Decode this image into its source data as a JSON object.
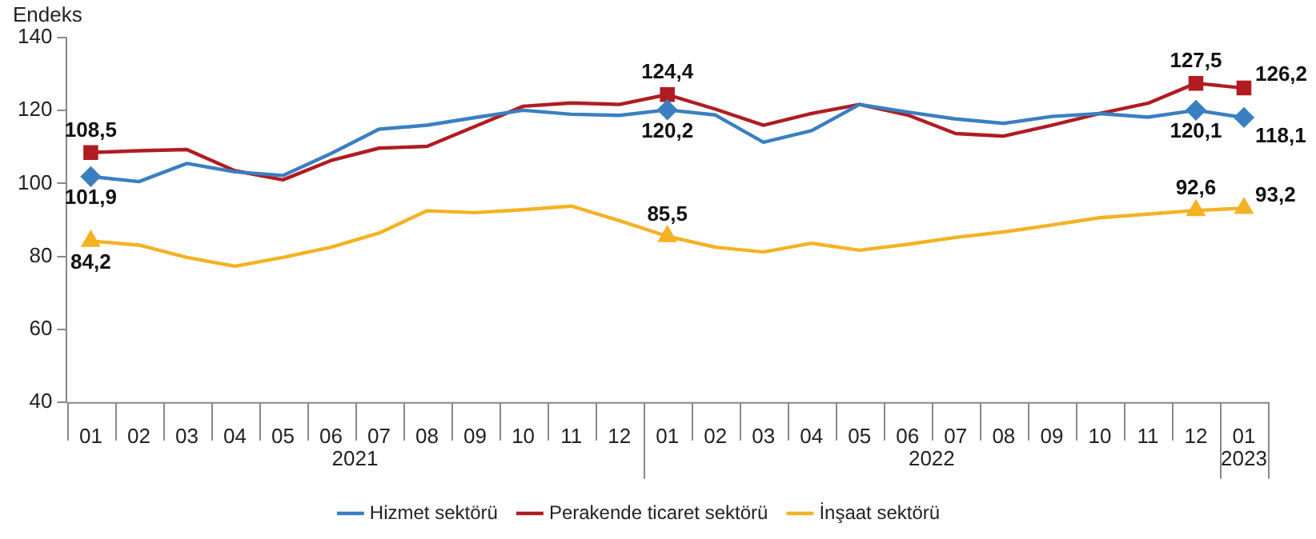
{
  "chart_data": {
    "type": "line",
    "ylabel": "Endeks",
    "categories": [
      "01",
      "02",
      "03",
      "04",
      "05",
      "06",
      "07",
      "08",
      "09",
      "10",
      "11",
      "12",
      "01",
      "02",
      "03",
      "04",
      "05",
      "06",
      "07",
      "08",
      "09",
      "10",
      "11",
      "12",
      "01"
    ],
    "annotations": [
      "2021",
      "2022",
      "2023"
    ],
    "ylim": [
      40,
      140
    ],
    "yticks": [
      40,
      60,
      80,
      100,
      120,
      140
    ],
    "grid": false,
    "legend": "bottom",
    "line_style": "solid",
    "series": [
      {
        "name": "Hizmet sektörü",
        "color": "#3a7fc1",
        "values": [
          101.9,
          100.5,
          105.5,
          103.2,
          102.2,
          108.2,
          114.9,
          116.0,
          118.1,
          120.1,
          119.0,
          118.7,
          120.2,
          118.8,
          111.3,
          114.5,
          121.7,
          119.6,
          117.7,
          116.5,
          118.4,
          119.2,
          118.2,
          120.1,
          118.1
        ],
        "value_labels": [
          "101,9",
          null,
          null,
          null,
          null,
          null,
          null,
          null,
          null,
          null,
          null,
          null,
          "120,2",
          null,
          null,
          null,
          null,
          null,
          null,
          null,
          null,
          null,
          null,
          "120,1",
          "118,1"
        ]
      },
      {
        "name": "Perakende ticaret sektörü",
        "color": "#b01c22",
        "values": [
          108.5,
          109.0,
          109.3,
          103.5,
          101.0,
          106.3,
          109.7,
          110.2,
          115.7,
          121.2,
          122.1,
          121.7,
          124.4,
          120.4,
          116.0,
          119.2,
          121.7,
          118.8,
          113.7,
          113.0,
          116.0,
          119.2,
          122.0,
          127.5,
          126.2
        ],
        "value_labels": [
          "108,5",
          null,
          null,
          null,
          null,
          null,
          null,
          null,
          null,
          null,
          null,
          null,
          "124,4",
          null,
          null,
          null,
          null,
          null,
          null,
          null,
          null,
          null,
          null,
          "127,5",
          "126,2"
        ]
      },
      {
        "name": "İnşaat sektörü",
        "color": "#f4b223",
        "values": [
          84.2,
          83.1,
          79.7,
          77.3,
          79.7,
          82.5,
          86.4,
          92.5,
          92.0,
          92.8,
          93.8,
          89.8,
          85.5,
          82.5,
          81.2,
          83.6,
          81.7,
          83.3,
          85.2,
          86.7,
          88.6,
          90.6,
          91.6,
          92.6,
          93.2
        ],
        "value_labels": [
          "84,2",
          null,
          null,
          null,
          null,
          null,
          null,
          null,
          null,
          null,
          null,
          null,
          "85,5",
          null,
          null,
          null,
          null,
          null,
          null,
          null,
          null,
          null,
          null,
          "92,6",
          "93,2"
        ]
      }
    ]
  }
}
